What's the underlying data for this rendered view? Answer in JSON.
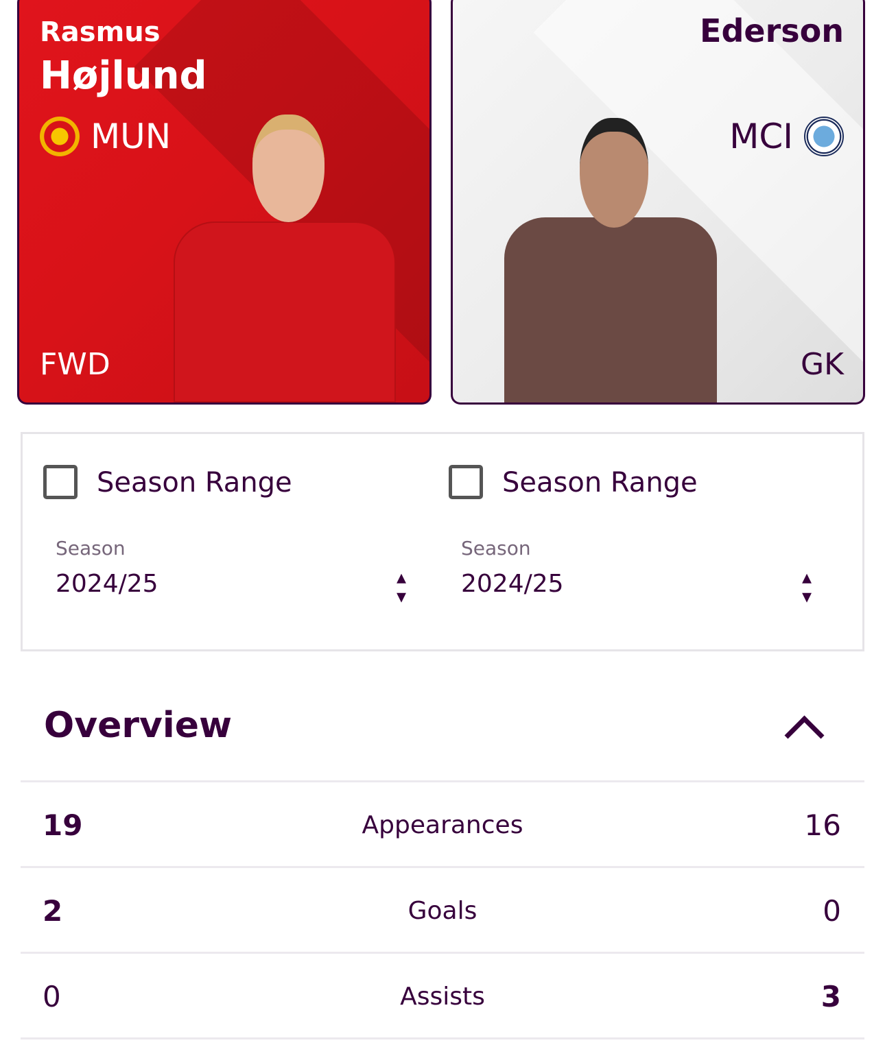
{
  "players": [
    {
      "first_name": "Rasmus",
      "last_name": "Højlund",
      "team": "MUN",
      "position": "FWD",
      "crest_icon": "manchester-united-crest",
      "card_color": "#da141b"
    },
    {
      "first_name": "",
      "last_name": "Ederson",
      "team": "MCI",
      "position": "GK",
      "crest_icon": "manchester-city-crest",
      "card_color": "#efefef"
    }
  ],
  "filters": [
    {
      "checkbox_label": "Season Range",
      "checked": false,
      "season_label": "Season",
      "season_value": "2024/25"
    },
    {
      "checkbox_label": "Season Range",
      "checked": false,
      "season_label": "Season",
      "season_value": "2024/25"
    }
  ],
  "overview": {
    "title": "Overview",
    "expanded": true,
    "rows": [
      {
        "label": "Appearances",
        "left": "19",
        "right": "16",
        "leader": "left"
      },
      {
        "label": "Goals",
        "left": "2",
        "right": "0",
        "leader": "left"
      },
      {
        "label": "Assists",
        "left": "0",
        "right": "3",
        "leader": "right"
      }
    ]
  },
  "colors": {
    "primary": "#37003c"
  }
}
